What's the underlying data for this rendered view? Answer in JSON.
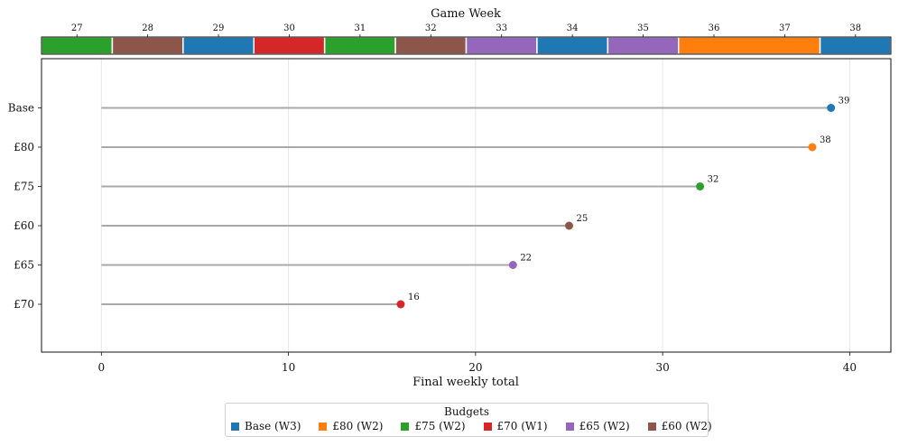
{
  "chart_data": {
    "type": "lollipop",
    "xlabel": "Final weekly total",
    "xlim": [
      -3.2,
      42.2
    ],
    "xticks": [
      0,
      10,
      20,
      30,
      40
    ],
    "grid": "vertical",
    "series": [
      {
        "name": "Base",
        "value": 39,
        "color": "#1f77b4"
      },
      {
        "name": "£80",
        "value": 38,
        "color": "#ff7f0e"
      },
      {
        "name": "£75",
        "value": 32,
        "color": "#2ca02c"
      },
      {
        "name": "£60",
        "value": 25,
        "color": "#8c564b"
      },
      {
        "name": "£65",
        "value": 22,
        "color": "#9467bd"
      },
      {
        "name": "£70",
        "value": 16,
        "color": "#d62728"
      }
    ],
    "game_week_strip": {
      "title": "Game Week",
      "weeks": [
        27,
        28,
        29,
        30,
        31,
        32,
        33,
        34,
        35,
        36,
        37,
        38
      ],
      "segments": [
        {
          "budget": "£75",
          "start_week": 27,
          "end_week": 27,
          "color": "#2ca02c"
        },
        {
          "budget": "£60",
          "start_week": 28,
          "end_week": 28,
          "color": "#8c564b"
        },
        {
          "budget": "Base",
          "start_week": 29,
          "end_week": 29,
          "color": "#1f77b4"
        },
        {
          "budget": "£70",
          "start_week": 30,
          "end_week": 30,
          "color": "#d62728"
        },
        {
          "budget": "£75",
          "start_week": 31,
          "end_week": 31,
          "color": "#2ca02c"
        },
        {
          "budget": "£60",
          "start_week": 32,
          "end_week": 32,
          "color": "#8c564b"
        },
        {
          "budget": "£65",
          "start_week": 33,
          "end_week": 33,
          "color": "#9467bd"
        },
        {
          "budget": "Base",
          "start_week": 34,
          "end_week": 34,
          "color": "#1f77b4"
        },
        {
          "budget": "£65",
          "start_week": 35,
          "end_week": 35,
          "color": "#9467bd"
        },
        {
          "budget": "£80",
          "start_week": 36,
          "end_week": 37,
          "color": "#ff7f0e"
        },
        {
          "budget": "Base",
          "start_week": 38,
          "end_week": 38,
          "color": "#1f77b4"
        }
      ]
    },
    "legend": {
      "title": "Budgets",
      "placement": "bottom-center",
      "entries": [
        {
          "label": "Base (W3)",
          "color": "#1f77b4"
        },
        {
          "label": "£80 (W2)",
          "color": "#ff7f0e"
        },
        {
          "label": "£75 (W2)",
          "color": "#2ca02c"
        },
        {
          "label": "£70 (W1)",
          "color": "#d62728"
        },
        {
          "label": "£65 (W2)",
          "color": "#9467bd"
        },
        {
          "label": "£60 (W2)",
          "color": "#8c564b"
        }
      ]
    }
  }
}
